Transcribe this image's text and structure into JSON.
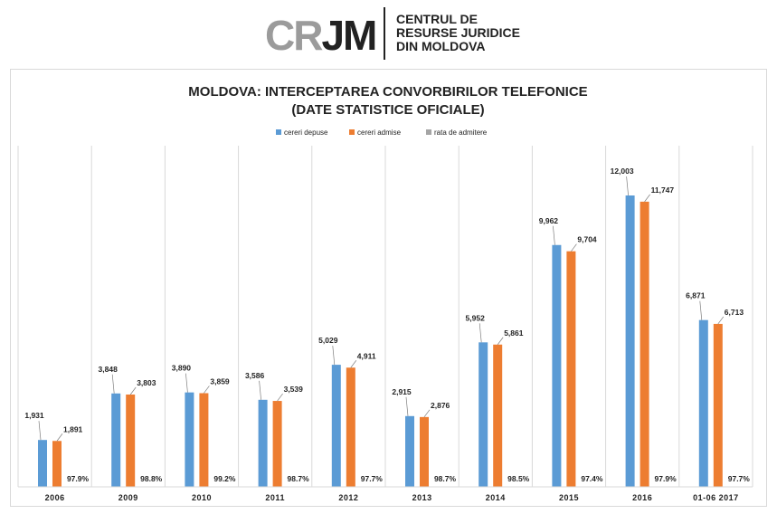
{
  "logo": {
    "mark_gray": "CR",
    "mark_dark": "JM",
    "lines": [
      "CENTRUL DE",
      "RESURSE JURIDICE",
      "DIN MOLDOVA"
    ]
  },
  "colors": {
    "cereri_depuse": "#5b9bd5",
    "cereri_admise": "#ed7d31",
    "rata_de_admitere": "#a5a5a5",
    "text": "#222222",
    "gridline": "#d9d9d9"
  },
  "chart_data": {
    "type": "bar",
    "title": [
      "MOLDOVA: INTERCEPTAREA CONVORBIRILOR TELEFONICE",
      "(DATE STATISTICE OFICIALE)"
    ],
    "legend_position": "top",
    "categories": [
      "2006",
      "2009",
      "2010",
      "2011",
      "2012",
      "2013",
      "2014",
      "2015",
      "2016",
      "01-06 2017"
    ],
    "series": [
      {
        "name": "cereri depuse",
        "values": [
          1931,
          3848,
          3890,
          3586,
          5029,
          2915,
          5952,
          9962,
          12003,
          6871
        ],
        "labels": [
          "1,931",
          "3,848",
          "3,890",
          "3,586",
          "5,029",
          "2,915",
          "5,952",
          "9,962",
          "12,003",
          "6,871"
        ]
      },
      {
        "name": "cereri admise",
        "values": [
          1891,
          3803,
          3859,
          3539,
          4911,
          2876,
          5861,
          9704,
          11747,
          6713
        ],
        "labels": [
          "1,891",
          "3,803",
          "3,859",
          "3,539",
          "4,911",
          "2,876",
          "5,861",
          "9,704",
          "11,747",
          "6,713"
        ]
      },
      {
        "name": "rata de admitere",
        "values": [
          97.9,
          98.8,
          99.2,
          98.7,
          97.7,
          98.7,
          98.5,
          97.4,
          97.9,
          97.7
        ],
        "labels": [
          "97.9%",
          "98.8%",
          "99.2%",
          "98.7%",
          "97.7%",
          "98.7%",
          "98.5%",
          "97.4%",
          "97.9%",
          "97.7%"
        ]
      }
    ],
    "ylim": [
      0,
      12700
    ],
    "grid": "vertical category separators",
    "xlabel": "",
    "ylabel": ""
  }
}
